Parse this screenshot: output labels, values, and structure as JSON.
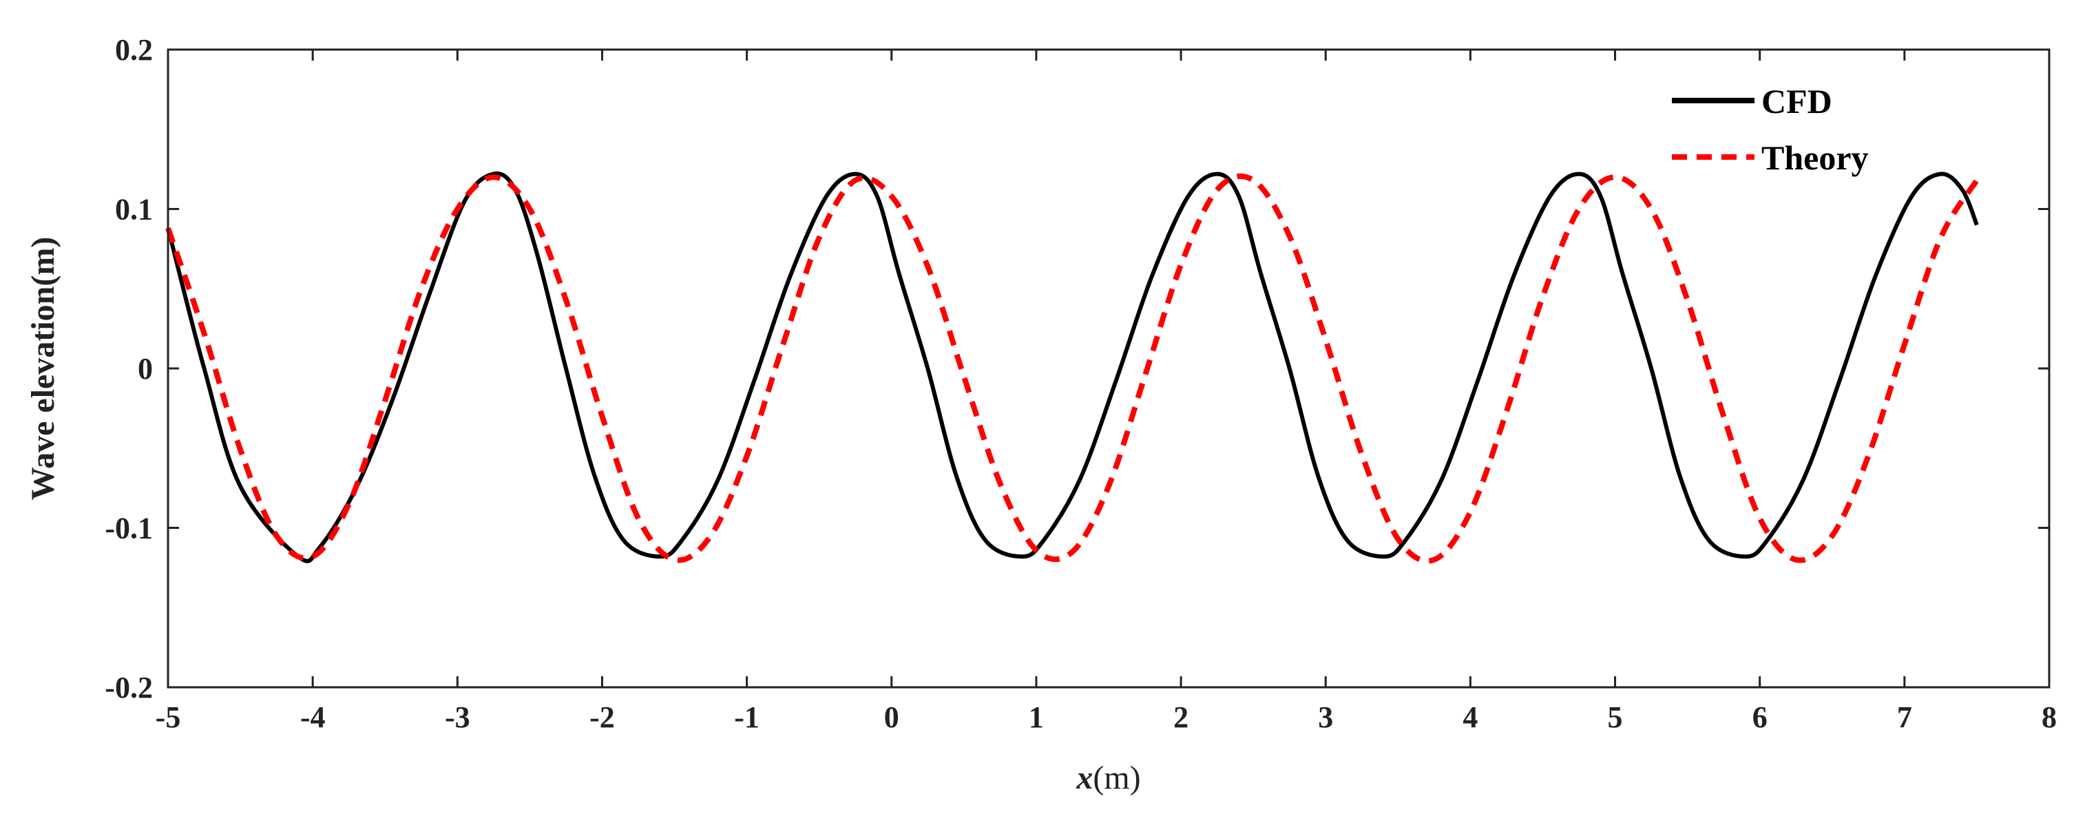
{
  "chart_data": {
    "type": "line",
    "xlabel": "x",
    "xlabel_unit": "(m)",
    "ylabel": "Wave elevation(m)",
    "xlim": [
      -5,
      8
    ],
    "ylim": [
      -0.2,
      0.2
    ],
    "x_ticks": [
      -5,
      -4,
      -3,
      -2,
      -1,
      0,
      1,
      2,
      3,
      4,
      5,
      6,
      7,
      8
    ],
    "x_tick_labels": [
      "-5",
      "-4",
      "-3",
      "-2",
      "-1",
      "0",
      "1",
      "2",
      "3",
      "4",
      "5",
      "6",
      "7",
      "8"
    ],
    "y_ticks": [
      -0.2,
      -0.1,
      0,
      0.1,
      0.2
    ],
    "y_tick_labels": [
      "-0.2",
      "-0.1",
      "0",
      "0.1",
      "0.2"
    ],
    "grid": false,
    "legend_position": "top-right",
    "series": [
      {
        "name": "CFD",
        "color": "#000000",
        "style": "solid",
        "x": [
          -5.0,
          -4.75,
          -4.5,
          -4.1,
          -3.95,
          -3.7,
          -3.45,
          -3.2,
          -2.95,
          -2.75,
          -2.6,
          -2.45,
          -2.25,
          -2.05,
          -1.85,
          -1.6,
          -1.45,
          -1.2,
          -0.95,
          -0.7,
          -0.45,
          -0.25,
          -0.1,
          0.05,
          0.25,
          0.45,
          0.65,
          0.9,
          1.05,
          1.3,
          1.55,
          1.8,
          2.05,
          2.25,
          2.4,
          2.55,
          2.75,
          2.95,
          3.15,
          3.4,
          3.55,
          3.8,
          4.05,
          4.3,
          4.55,
          4.75,
          4.9,
          5.05,
          5.25,
          5.45,
          5.65,
          5.9,
          6.05,
          6.3,
          6.55,
          6.8,
          7.05,
          7.25,
          7.4,
          7.5
        ],
        "y": [
          0.088,
          0.0,
          -0.074,
          -0.118,
          -0.112,
          -0.075,
          -0.02,
          0.045,
          0.105,
          0.122,
          0.112,
          0.072,
          0.0,
          -0.068,
          -0.108,
          -0.118,
          -0.108,
          -0.07,
          -0.008,
          0.058,
          0.108,
          0.122,
          0.108,
          0.06,
          0.0,
          -0.068,
          -0.108,
          -0.118,
          -0.108,
          -0.07,
          -0.008,
          0.058,
          0.108,
          0.122,
          0.108,
          0.06,
          0.0,
          -0.068,
          -0.108,
          -0.118,
          -0.108,
          -0.07,
          -0.008,
          0.058,
          0.108,
          0.122,
          0.108,
          0.06,
          0.0,
          -0.068,
          -0.108,
          -0.118,
          -0.108,
          -0.07,
          -0.008,
          0.058,
          0.108,
          0.122,
          0.112,
          0.09
        ]
      },
      {
        "name": "Theory",
        "color": "#ff0000",
        "style": "dashed",
        "x": [
          -5.0,
          -4.75,
          -4.5,
          -4.25,
          -4.0,
          -3.75,
          -3.5,
          -3.25,
          -3.0,
          -2.75,
          -2.5,
          -2.25,
          -2.0,
          -1.75,
          -1.5,
          -1.25,
          -1.0,
          -0.75,
          -0.5,
          -0.25,
          0.0,
          0.25,
          0.5,
          0.75,
          1.0,
          1.25,
          1.5,
          1.75,
          2.0,
          2.25,
          2.5,
          2.75,
          3.0,
          3.25,
          3.5,
          3.75,
          4.0,
          4.25,
          4.5,
          4.75,
          5.0,
          5.25,
          5.5,
          5.75,
          6.0,
          6.25,
          6.5,
          6.75,
          7.0,
          7.25,
          7.5
        ],
        "y": [
          0.088,
          0.022,
          -0.051,
          -0.105,
          -0.118,
          -0.085,
          -0.02,
          0.05,
          0.1,
          0.12,
          0.1,
          0.043,
          -0.03,
          -0.094,
          -0.12,
          -0.105,
          -0.055,
          0.015,
          0.082,
          0.118,
          0.108,
          0.064,
          -0.005,
          -0.072,
          -0.114,
          -0.115,
          -0.074,
          -0.005,
          0.065,
          0.112,
          0.118,
          0.083,
          0.018,
          -0.054,
          -0.107,
          -0.12,
          -0.09,
          -0.027,
          0.045,
          0.1,
          0.12,
          0.1,
          0.043,
          -0.03,
          -0.094,
          -0.12,
          -0.105,
          -0.055,
          0.015,
          0.082,
          0.118
        ]
      }
    ]
  }
}
